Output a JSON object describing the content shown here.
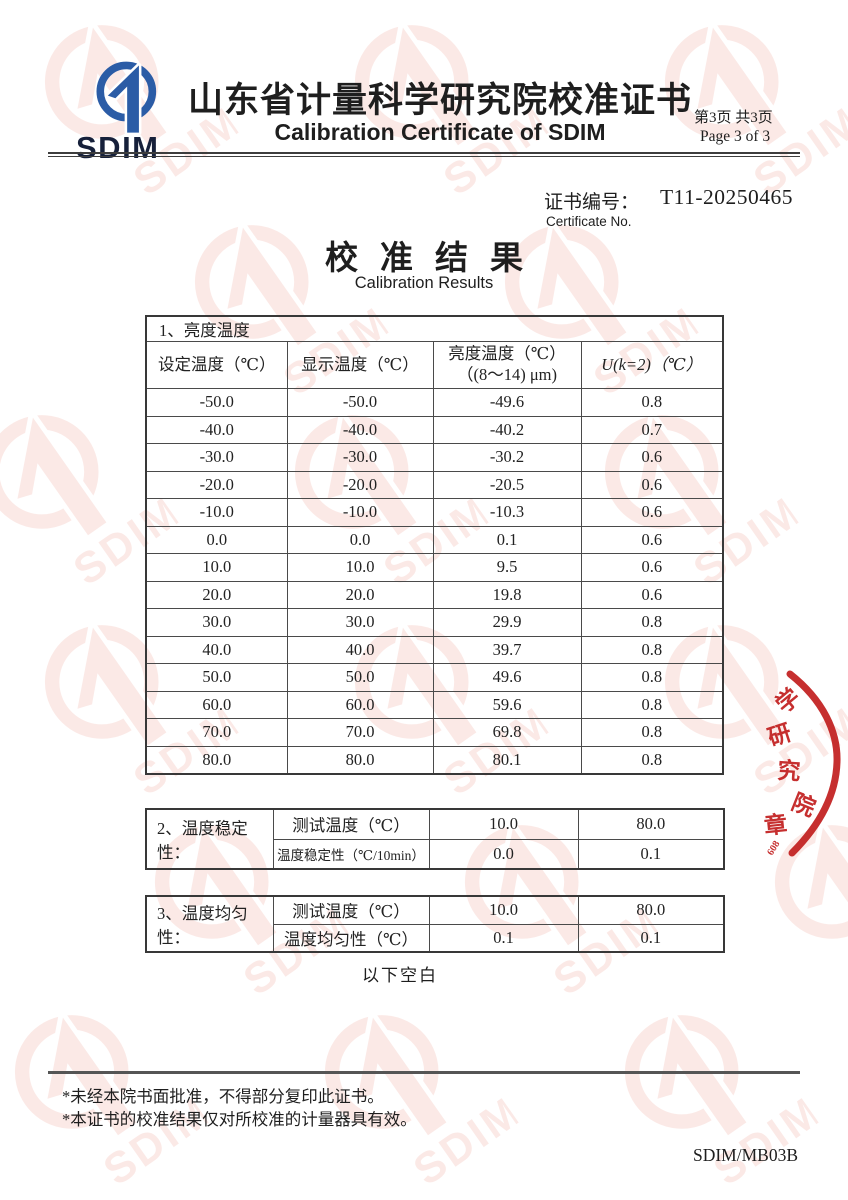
{
  "header": {
    "logo_text": "SDIM",
    "title_cn": "山东省计量科学研究院校准证书",
    "title_en": "Calibration Certificate of SDIM",
    "page_info_cn": "第3页 共3页",
    "page_info_en": "Page 3 of 3"
  },
  "certificate": {
    "label_cn": "证书编号：",
    "number": "T11-20250465",
    "label_en": "Certificate No."
  },
  "section": {
    "title_cn": "校准结果",
    "title_en": "Calibration Results"
  },
  "table1": {
    "caption": "1、亮度温度",
    "headers": [
      {
        "lines": [
          "设定温度（℃）"
        ]
      },
      {
        "lines": [
          "显示温度（℃）"
        ]
      },
      {
        "lines": [
          "亮度温度（℃）",
          "（(8～14) μm)"
        ]
      },
      {
        "lines": [
          "U(k=2)（℃）"
        ],
        "italic": true
      }
    ],
    "rows": [
      [
        "-50.0",
        "-50.0",
        "-49.6",
        "0.8"
      ],
      [
        "-40.0",
        "-40.0",
        "-40.2",
        "0.7"
      ],
      [
        "-30.0",
        "-30.0",
        "-30.2",
        "0.6"
      ],
      [
        "-20.0",
        "-20.0",
        "-20.5",
        "0.6"
      ],
      [
        "-10.0",
        "-10.0",
        "-10.3",
        "0.6"
      ],
      [
        "0.0",
        "0.0",
        "0.1",
        "0.6"
      ],
      [
        "10.0",
        "10.0",
        "9.5",
        "0.6"
      ],
      [
        "20.0",
        "20.0",
        "19.8",
        "0.6"
      ],
      [
        "30.0",
        "30.0",
        "29.9",
        "0.8"
      ],
      [
        "40.0",
        "40.0",
        "39.7",
        "0.8"
      ],
      [
        "50.0",
        "50.0",
        "49.6",
        "0.8"
      ],
      [
        "60.0",
        "60.0",
        "59.6",
        "0.8"
      ],
      [
        "70.0",
        "70.0",
        "69.8",
        "0.8"
      ],
      [
        "80.0",
        "80.0",
        "80.1",
        "0.8"
      ]
    ]
  },
  "table2": {
    "caption": "2、温度稳定性：",
    "rows": [
      {
        "label": "测试温度（℃）",
        "small": false,
        "values": [
          "10.0",
          "80.0"
        ]
      },
      {
        "label": "温度稳定性（℃/10min）",
        "small": true,
        "values": [
          "0.0",
          "0.1"
        ]
      }
    ]
  },
  "table3": {
    "caption": "3、温度均匀性：",
    "rows": [
      {
        "label": "测试温度（℃）",
        "small": false,
        "values": [
          "10.0",
          "80.0"
        ]
      },
      {
        "label": "温度均匀性（℃）",
        "small": false,
        "values": [
          "0.1",
          "0.1"
        ]
      }
    ]
  },
  "below_text": "以下空白",
  "footer": {
    "notes": [
      "*未经本院书面批准，不得部分复印此证书。",
      "*本证书的校准结果仅对所校准的计量器具有效。"
    ],
    "doc_code": "SDIM/MB03B"
  },
  "seal": {
    "chars": [
      "学",
      "研",
      "究",
      "院",
      "章"
    ],
    "small_text": "608"
  },
  "colors": {
    "logo_blue": "#2b5ca6",
    "logo_text_navy": "#16203a",
    "seal_red": "#c32424",
    "watermark_red": "#e0543e"
  }
}
